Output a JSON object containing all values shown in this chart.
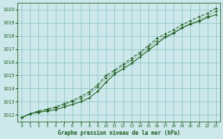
{
  "title": "Graphe pression niveau de la mer (hPa)",
  "bg_color": "#cce8ea",
  "grid_color": "#7fbfbf",
  "line_color": "#1a5c1a",
  "xlim": [
    -0.5,
    23.5
  ],
  "ylim": [
    1011.5,
    1020.5
  ],
  "xticks": [
    0,
    1,
    2,
    3,
    4,
    5,
    6,
    7,
    8,
    9,
    10,
    11,
    12,
    13,
    14,
    15,
    16,
    17,
    18,
    19,
    20,
    21,
    22,
    23
  ],
  "yticks": [
    1012,
    1013,
    1014,
    1015,
    1016,
    1017,
    1018,
    1019,
    1020
  ],
  "line1_x": [
    0,
    1,
    2,
    3,
    4,
    5,
    6,
    7,
    8,
    9,
    10,
    11,
    12,
    13,
    14,
    15,
    16,
    17,
    18,
    19,
    20,
    21,
    22,
    23
  ],
  "line1_y": [
    1011.8,
    1012.1,
    1012.2,
    1012.3,
    1012.4,
    1012.6,
    1012.8,
    1013.0,
    1013.3,
    1013.8,
    1014.5,
    1015.1,
    1015.5,
    1015.9,
    1016.4,
    1016.9,
    1017.4,
    1017.9,
    1018.2,
    1018.6,
    1018.9,
    1019.1,
    1019.4,
    1019.6
  ],
  "line2_x": [
    0,
    1,
    2,
    3,
    4,
    5,
    6,
    7,
    8,
    9,
    10,
    11,
    12,
    13,
    14,
    15,
    16,
    17,
    18,
    19,
    20,
    21,
    22,
    23
  ],
  "line2_y": [
    1011.8,
    1012.1,
    1012.25,
    1012.4,
    1012.55,
    1012.75,
    1013.0,
    1013.25,
    1013.6,
    1014.15,
    1014.8,
    1015.25,
    1015.7,
    1016.15,
    1016.6,
    1017.1,
    1017.6,
    1017.95,
    1018.25,
    1018.65,
    1018.95,
    1019.2,
    1019.5,
    1019.85
  ],
  "line3_x": [
    0,
    1,
    2,
    3,
    4,
    5,
    6,
    7,
    8,
    9,
    10,
    11,
    12,
    13,
    14,
    15,
    16,
    17,
    18,
    19,
    20,
    21,
    22,
    23
  ],
  "line3_y": [
    1011.8,
    1012.1,
    1012.3,
    1012.45,
    1012.6,
    1012.85,
    1013.1,
    1013.4,
    1013.75,
    1014.3,
    1015.0,
    1015.4,
    1015.85,
    1016.3,
    1016.75,
    1017.25,
    1017.8,
    1018.15,
    1018.45,
    1018.85,
    1019.15,
    1019.45,
    1019.7,
    1020.1
  ]
}
